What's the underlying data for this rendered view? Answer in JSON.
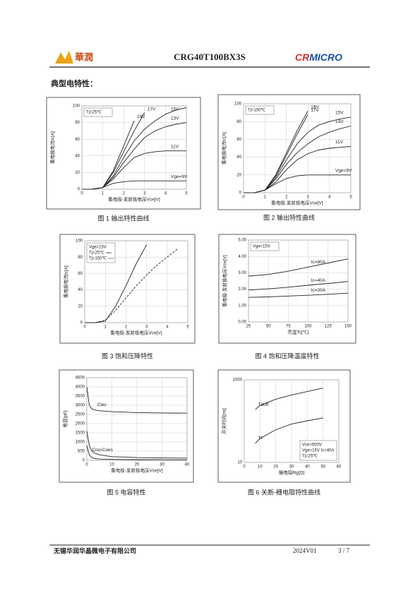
{
  "header": {
    "logo_left": "華潤",
    "part_number": "CRG40T100BX3S",
    "logo_right": [
      "CR",
      "MICRO"
    ]
  },
  "section_title": "典型电特性：",
  "footer": {
    "company": "无锡华润华晶微电子有限公司",
    "version": "2024V01",
    "page": "3 / 7"
  },
  "chart_data": [
    {
      "type": "line",
      "caption": "图 1 输出特性曲线",
      "xlabel": "集电极-发射极电压Vce[V]",
      "ylabel": "集电极电流Ic[A]",
      "annotations": [
        "Tj=25℃"
      ],
      "x": [
        0,
        0.5,
        1,
        1.5,
        2,
        2.5,
        3,
        3.5,
        4,
        4.5,
        5
      ],
      "xlim": [
        0,
        5
      ],
      "xticks": [
        0,
        1,
        2,
        3,
        4,
        5
      ],
      "ylim": [
        0,
        100
      ],
      "yticks": [
        0,
        20,
        40,
        60,
        80,
        100
      ],
      "grid": true,
      "series": [
        {
          "name": "19V",
          "color": "#222",
          "values": [
            0,
            0,
            2,
            22,
            52,
            82,
            null,
            null,
            null,
            null,
            null
          ]
        },
        {
          "name": "17V",
          "color": "#222",
          "values": [
            0,
            0,
            2,
            20,
            45,
            70,
            92,
            null,
            null,
            null,
            null
          ]
        },
        {
          "name": "15V",
          "color": "#222",
          "values": [
            0,
            0,
            2,
            16,
            38,
            58,
            72,
            82,
            90,
            95,
            98
          ]
        },
        {
          "name": "13V",
          "color": "#222",
          "values": [
            0,
            0,
            2,
            14,
            32,
            48,
            62,
            70,
            75,
            78,
            80
          ]
        },
        {
          "name": "11V",
          "color": "#222",
          "values": [
            0,
            0,
            2,
            12,
            26,
            38,
            43,
            45,
            46,
            46,
            46
          ]
        },
        {
          "name": "Vge=9V",
          "color": "#222",
          "values": [
            0,
            0,
            2,
            7,
            9,
            10,
            10,
            10,
            10,
            10,
            10
          ]
        }
      ]
    },
    {
      "type": "line",
      "caption": "图 2 输出特性曲线",
      "xlabel": "集电极-发射极电压Vce[V]",
      "ylabel": "集电极电流Ic[A]",
      "annotations": [
        "Tj=150℃"
      ],
      "x": [
        0,
        0.5,
        1,
        1.5,
        2,
        2.5,
        3,
        3.5,
        4,
        4.5,
        5
      ],
      "xlim": [
        0,
        5
      ],
      "xticks": [
        0,
        1,
        2,
        3,
        4,
        5
      ],
      "ylim": [
        0,
        100
      ],
      "yticks": [
        0,
        20,
        40,
        60,
        80,
        100
      ],
      "grid": true,
      "series": [
        {
          "name": "19V",
          "color": "#222",
          "values": [
            0,
            0,
            3,
            20,
            45,
            70,
            92,
            null,
            null,
            null,
            null
          ]
        },
        {
          "name": "17V",
          "color": "#222",
          "values": [
            0,
            0,
            3,
            19,
            42,
            66,
            88,
            null,
            null,
            null,
            null
          ]
        },
        {
          "name": "15V",
          "color": "#222",
          "values": [
            0,
            0,
            3,
            17,
            37,
            55,
            68,
            76,
            80,
            83,
            85
          ]
        },
        {
          "name": "13V",
          "color": "#222",
          "values": [
            0,
            0,
            3,
            15,
            32,
            45,
            55,
            63,
            68,
            72,
            75
          ]
        },
        {
          "name": "11V",
          "color": "#222",
          "values": [
            0,
            0,
            3,
            12,
            26,
            37,
            44,
            48,
            50,
            51,
            52
          ]
        },
        {
          "name": "Vge=9V",
          "color": "#222",
          "values": [
            0,
            0,
            3,
            10,
            16,
            19,
            20,
            20,
            20,
            20,
            20
          ]
        }
      ]
    },
    {
      "type": "line",
      "caption": "图 3 饱和压降特性",
      "xlabel": "集电极-发射极电压Vce[V]",
      "ylabel": "集电极电流Ic[A]",
      "annotations": [
        "Vge=15V"
      ],
      "legend": "top-left",
      "x": [
        0,
        0.5,
        1,
        1.5,
        2,
        2.5,
        3,
        3.5,
        4,
        4.5
      ],
      "xlim": [
        0,
        5
      ],
      "xticks": [
        0,
        1,
        2,
        3,
        4,
        5
      ],
      "ylim": [
        0,
        100
      ],
      "yticks": [
        0,
        20,
        40,
        60,
        80,
        100
      ],
      "grid": true,
      "series": [
        {
          "name": "Tj=25℃",
          "color": "#222",
          "values": [
            0,
            0,
            2,
            20,
            45,
            72,
            95,
            null,
            null,
            null
          ]
        },
        {
          "name": "Tj=150℃",
          "color": "#222",
          "dashed": true,
          "values": [
            0,
            0,
            3,
            15,
            30,
            45,
            58,
            70,
            80,
            90
          ]
        }
      ]
    },
    {
      "type": "line",
      "caption": "图 4 饱和压降温度特性",
      "xlabel": "壳温Tc[℃]",
      "ylabel": "集电极-发射极电压Vce[V]",
      "annotations": [
        "Vge=15V"
      ],
      "x": [
        25,
        50,
        75,
        100,
        125,
        150
      ],
      "xlim": [
        25,
        150
      ],
      "xticks": [
        25,
        50,
        75,
        100,
        125,
        150
      ],
      "ylim": [
        0,
        5
      ],
      "yticks": [
        {
          "value": 0,
          "label": "0.00"
        },
        {
          "value": 1,
          "label": "1.00"
        },
        {
          "value": 2,
          "label": "2.00"
        },
        {
          "value": 3,
          "label": "3.00"
        },
        {
          "value": 4,
          "label": "4.00"
        },
        {
          "value": 5,
          "label": "5.00"
        }
      ],
      "grid": true,
      "series": [
        {
          "name": "Ic=80A",
          "color": "#222",
          "values": [
            2.8,
            2.9,
            3.1,
            3.35,
            3.6,
            3.85
          ]
        },
        {
          "name": "Ic=40A",
          "color": "#222",
          "values": [
            1.95,
            2.02,
            2.12,
            2.24,
            2.35,
            2.47
          ]
        },
        {
          "name": "Ic=20A",
          "color": "#222",
          "values": [
            1.5,
            1.53,
            1.58,
            1.63,
            1.69,
            1.76
          ]
        }
      ]
    },
    {
      "type": "line",
      "caption": "图 5 电容特性",
      "xlabel": "集电极-发射极电压Vce[V]",
      "ylabel": "电容[pF]",
      "annotations": [],
      "x": [
        0,
        1,
        2,
        3,
        5,
        10,
        20,
        30,
        40
      ],
      "xlim": [
        0,
        40
      ],
      "xticks": [
        0,
        10,
        20,
        30,
        40
      ],
      "ylim": [
        0,
        4500
      ],
      "yticks": [
        0,
        500,
        1000,
        1500,
        2000,
        2500,
        3000,
        3500,
        4000,
        4500
      ],
      "grid": true,
      "series": [
        {
          "name": "Cies",
          "color": "#222",
          "values": [
            4000,
            3000,
            2800,
            2750,
            2700,
            2650,
            2600,
            2580,
            2570
          ]
        },
        {
          "name": "Coes",
          "color": "#222",
          "values": [
            1600,
            800,
            500,
            400,
            300,
            200,
            150,
            130,
            120
          ]
        },
        {
          "name": "Cres",
          "color": "#222",
          "values": [
            800,
            300,
            150,
            100,
            70,
            50,
            40,
            35,
            30
          ]
        }
      ]
    },
    {
      "type": "line",
      "caption": "图 6 关断-栅电阻特性曲线",
      "xlabel": "栅电阻Rg[Ω]",
      "ylabel": "开关时间[ns]",
      "annotations": [
        "Vce=500V",
        "Vge=15V Ic=40A",
        "Tj=25℃"
      ],
      "x": [
        7,
        10,
        20,
        30,
        40,
        50
      ],
      "xlim": [
        0,
        60
      ],
      "xticks": [
        0,
        10,
        20,
        30,
        40,
        50,
        60
      ],
      "ylim": [
        10,
        1000
      ],
      "yticks": [
        10,
        1000
      ],
      "log_y": true,
      "grid": true,
      "series": [
        {
          "name": "Tdoff",
          "color": "#222",
          "values": [
            190,
            240,
            340,
            430,
            520,
            630
          ]
        },
        {
          "name": "Tf",
          "color": "#222",
          "values": [
            29,
            38,
            62,
            85,
            102,
            120
          ]
        }
      ]
    }
  ]
}
